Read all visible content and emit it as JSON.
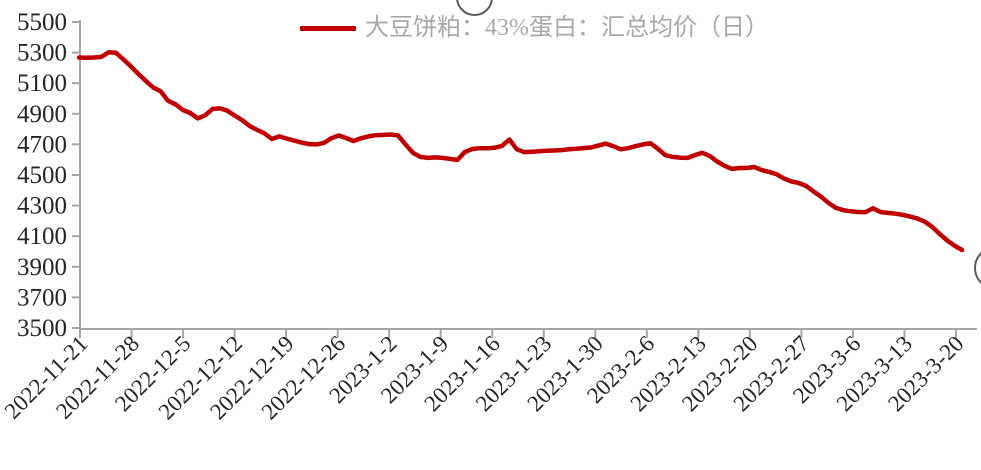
{
  "decorations": {
    "top_watermark": "partial-circle-watermark",
    "right_watermark": "partial-circle-watermark"
  },
  "chart_data": {
    "type": "line",
    "title": "",
    "legend": {
      "position": "top-center",
      "label": "大豆饼粕：43%蛋白：汇总均价（日）"
    },
    "categories": [
      "2022-11-21",
      "2022-11-28",
      "2022-12-5",
      "2022-12-12",
      "2022-12-19",
      "2022-12-26",
      "2023-1-2",
      "2023-1-9",
      "2023-1-16",
      "2023-1-23",
      "2023-1-30",
      "2023-2-6",
      "2023-2-13",
      "2023-2-20",
      "2023-2-27",
      "2023-3-6",
      "2023-3-13",
      "2023-3-20"
    ],
    "x_note": "daily price samples, tick labels weekly",
    "ylim": [
      3500,
      5500
    ],
    "y_ticks": [
      5500,
      5300,
      5100,
      4900,
      4700,
      4500,
      4300,
      4100,
      3900,
      3700,
      3500
    ],
    "grid": false,
    "axis_color": "#A6A6A6",
    "label_color": "#262626",
    "series": [
      {
        "name": "大豆饼粕：43%蛋白：汇总均价（日）",
        "color": "#C00000",
        "values": [
          5268,
          5266,
          5268,
          5272,
          5302,
          5298,
          5255,
          5210,
          5160,
          5115,
          5072,
          5048,
          4985,
          4962,
          4925,
          4905,
          4870,
          4890,
          4932,
          4935,
          4920,
          4888,
          4858,
          4820,
          4795,
          4772,
          4735,
          4752,
          4738,
          4725,
          4712,
          4702,
          4700,
          4710,
          4740,
          4758,
          4742,
          4722,
          4740,
          4752,
          4760,
          4762,
          4765,
          4758,
          4700,
          4645,
          4618,
          4612,
          4615,
          4612,
          4605,
          4598,
          4650,
          4670,
          4675,
          4675,
          4678,
          4690,
          4732,
          4668,
          4650,
          4652,
          4655,
          4658,
          4660,
          4663,
          4668,
          4672,
          4676,
          4680,
          4692,
          4705,
          4688,
          4668,
          4675,
          4688,
          4700,
          4708,
          4672,
          4630,
          4618,
          4613,
          4612,
          4630,
          4645,
          4625,
          4588,
          4560,
          4540,
          4546,
          4546,
          4552,
          4532,
          4520,
          4505,
          4478,
          4458,
          4448,
          4428,
          4392,
          4358,
          4318,
          4285,
          4270,
          4263,
          4258,
          4257,
          4283,
          4258,
          4252,
          4247,
          4240,
          4228,
          4215,
          4195,
          4160,
          4115,
          4072,
          4038,
          4010
        ]
      }
    ]
  }
}
